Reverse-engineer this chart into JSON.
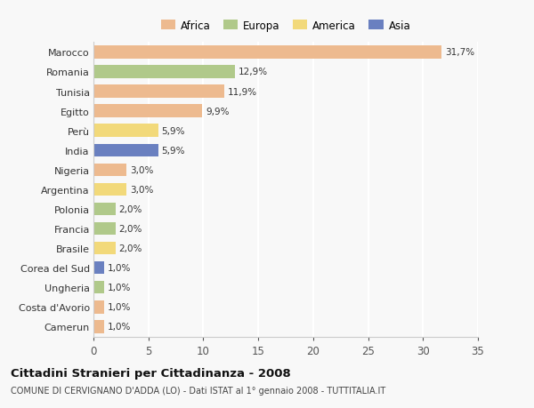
{
  "countries": [
    "Marocco",
    "Romania",
    "Tunisia",
    "Egitto",
    "Perù",
    "India",
    "Nigeria",
    "Argentina",
    "Polonia",
    "Francia",
    "Brasile",
    "Corea del Sud",
    "Ungheria",
    "Costa d'Avorio",
    "Camerun"
  ],
  "values": [
    31.7,
    12.9,
    11.9,
    9.9,
    5.9,
    5.9,
    3.0,
    3.0,
    2.0,
    2.0,
    2.0,
    1.0,
    1.0,
    1.0,
    1.0
  ],
  "labels": [
    "31,7%",
    "12,9%",
    "11,9%",
    "9,9%",
    "5,9%",
    "5,9%",
    "3,0%",
    "3,0%",
    "2,0%",
    "2,0%",
    "2,0%",
    "1,0%",
    "1,0%",
    "1,0%",
    "1,0%"
  ],
  "continents": [
    "Africa",
    "Europa",
    "Africa",
    "Africa",
    "America",
    "Asia",
    "Africa",
    "America",
    "Europa",
    "Europa",
    "America",
    "Asia",
    "Europa",
    "Africa",
    "Africa"
  ],
  "continent_colors": {
    "Africa": "#EDBA8F",
    "Europa": "#B0C98A",
    "America": "#F2D97A",
    "Asia": "#6A80C0"
  },
  "legend_order": [
    "Africa",
    "Europa",
    "America",
    "Asia"
  ],
  "legend_colors": [
    "#EDBA8F",
    "#B0C98A",
    "#F2D97A",
    "#6A80C0"
  ],
  "title": "Cittadini Stranieri per Cittadinanza - 2008",
  "subtitle": "COMUNE DI CERVIGNANO D'ADDA (LO) - Dati ISTAT al 1° gennaio 2008 - TUTTITALIA.IT",
  "xlim": [
    0,
    35
  ],
  "xticks": [
    0,
    5,
    10,
    15,
    20,
    25,
    30,
    35
  ],
  "bg_color": "#f8f8f8",
  "grid_color": "#ffffff"
}
